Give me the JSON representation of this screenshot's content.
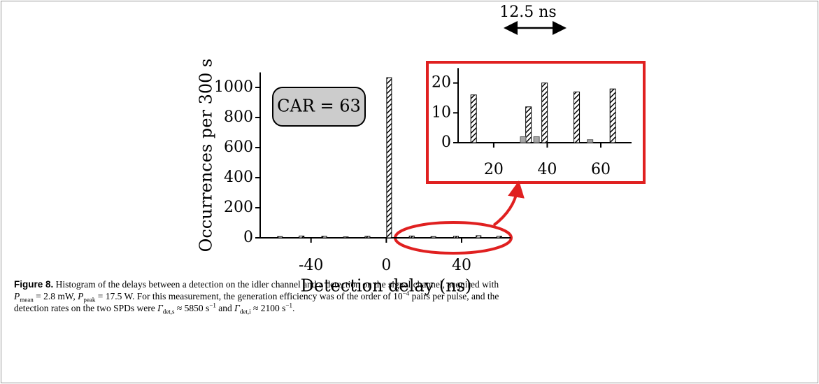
{
  "chart_data": [
    {
      "type": "bar",
      "x": [
        -56.5,
        -45,
        -33,
        -21.5,
        -10,
        1.5,
        13.5,
        25,
        37,
        49,
        60
      ],
      "values": [
        8,
        12,
        10,
        6,
        10,
        1065,
        12,
        8,
        10,
        14,
        10
      ],
      "color": "#000000",
      "hatch": true,
      "xlim": [
        -67,
        66
      ],
      "ylim": [
        0,
        1100
      ],
      "xticks": [
        -40,
        0,
        40
      ],
      "yticks": [
        0,
        200,
        400,
        600,
        800,
        1000
      ],
      "xlabel": "Detection delay (ns)",
      "ylabel": "Occurrences per 300 s",
      "annotation": "CAR = 63"
    },
    {
      "type": "bar",
      "series": [
        {
          "color": "#000000",
          "hatch": true,
          "x": [
            12.5,
            33,
            39,
            51,
            64.5
          ],
          "values": [
            16,
            12,
            20,
            17,
            18
          ]
        },
        {
          "color": "#a6a6a6",
          "hatch": false,
          "x": [
            31,
            36,
            56
          ],
          "values": [
            2,
            2,
            1
          ]
        }
      ],
      "xlim": [
        6.7,
        71.5
      ],
      "ylim": [
        0,
        25
      ],
      "xticks": [
        20,
        40,
        60
      ],
      "yticks": [
        0,
        10,
        20
      ],
      "annotation": "12.5 ns"
    }
  ],
  "caption": {
    "lines": [
      [
        {
          "t": "Figure 8.",
          "s": "b"
        },
        {
          "t": " Histogram of the delays between a detection on the idler channel and a detection on the signal channel, acquired with"
        }
      ],
      [
        {
          "t": "P",
          "s": "i"
        },
        {
          "t": "mean",
          "s": "sub"
        },
        {
          "t": " = 2.8 mW, "
        },
        {
          "t": "P",
          "s": "i"
        },
        {
          "t": "peak",
          "s": "sub"
        },
        {
          "t": " = 17.5 W. For this measurement, the generation efficiency was of the order of 10"
        },
        {
          "t": "−4",
          "s": "sup"
        },
        {
          "t": " pairs per pulse, and the"
        }
      ],
      [
        {
          "t": "detection rates on the two SPDs were "
        },
        {
          "t": "Γ",
          "s": "i"
        },
        {
          "t": "det,s",
          "s": "sub"
        },
        {
          "t": " ≈ 5850 s"
        },
        {
          "t": "−1",
          "s": "sup"
        },
        {
          "t": " and "
        },
        {
          "t": "Γ",
          "s": "i"
        },
        {
          "t": "det,i",
          "s": "sub"
        },
        {
          "t": " ≈ 2100 s"
        },
        {
          "t": "−1",
          "s": "sup"
        },
        {
          "t": "."
        }
      ]
    ]
  }
}
